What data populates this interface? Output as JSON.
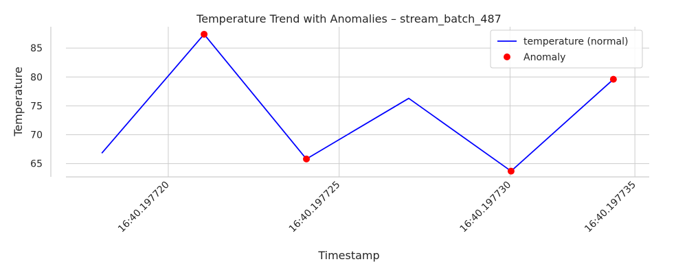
{
  "chart_data": {
    "type": "line",
    "title": "Temperature Trend with Anomalies – stream_batch_487",
    "xlabel": "Timestamp",
    "ylabel": "Temperature",
    "x": [
      1,
      2,
      3,
      4,
      5,
      6
    ],
    "xlim": [
      0.65,
      6.35
    ],
    "ylim": [
      62.7,
      88.7
    ],
    "yticks": [
      65,
      70,
      75,
      80,
      85
    ],
    "xticks": [
      {
        "value": 1.65,
        "label": "16:40.197720"
      },
      {
        "value": 3.32,
        "label": "16:40.197725"
      },
      {
        "value": 4.99,
        "label": "16:40.197730"
      },
      {
        "value": 6.21,
        "label": "16:40.197735"
      }
    ],
    "grid": true,
    "legend_position": "top-right",
    "series": [
      {
        "name": "temperature (normal)",
        "type": "line",
        "color": "#0000ff",
        "values": [
          66.8,
          87.4,
          65.8,
          76.3,
          63.7,
          79.6
        ]
      },
      {
        "name": "Anomaly",
        "type": "scatter",
        "color": "#ff0000",
        "points": [
          {
            "x": 2,
            "y": 87.4
          },
          {
            "x": 3,
            "y": 65.8
          },
          {
            "x": 5,
            "y": 63.7
          },
          {
            "x": 6,
            "y": 79.6
          }
        ]
      }
    ]
  }
}
